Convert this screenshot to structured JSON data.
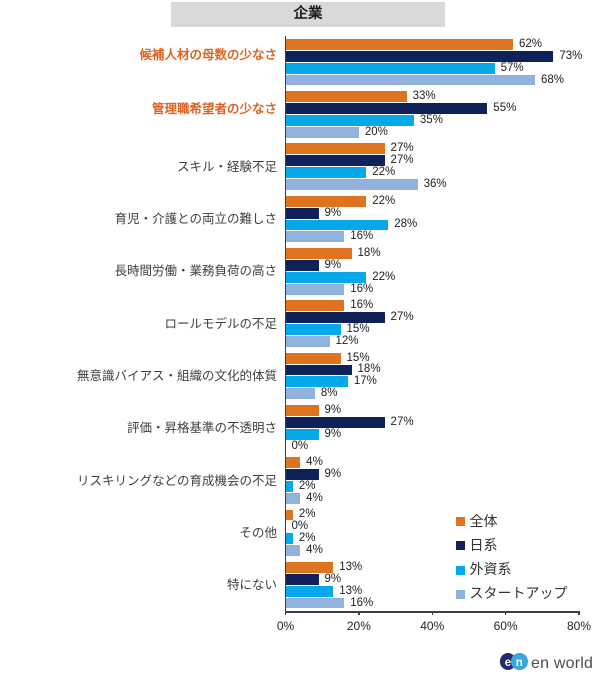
{
  "title": "企業",
  "chart_data": {
    "type": "bar",
    "orientation": "horizontal",
    "title": "企業",
    "categories": [
      "候補人材の母数の少なさ",
      "管理職希望者の少なさ",
      "スキル・経験不足",
      "育児・介護との両立の難しさ",
      "長時間労働・業務負荷の高さ",
      "ロールモデルの不足",
      "無意識バイアス・組織の文化的体質",
      "評価・昇格基準の不透明さ",
      "リスキリングなどの育成機会の不足",
      "その他",
      "特にない"
    ],
    "emphasized_categories": [
      0,
      1
    ],
    "series": [
      {
        "name": "全体",
        "color": "#df7420",
        "values": [
          62,
          33,
          27,
          22,
          18,
          16,
          15,
          9,
          4,
          2,
          13
        ]
      },
      {
        "name": "日系",
        "color": "#0e2158",
        "values": [
          73,
          55,
          27,
          9,
          9,
          27,
          18,
          27,
          9,
          0,
          9
        ]
      },
      {
        "name": "外資系",
        "color": "#05a8e9",
        "values": [
          57,
          35,
          22,
          28,
          22,
          15,
          17,
          9,
          2,
          2,
          13
        ]
      },
      {
        "name": "スタートアップ",
        "color": "#90b2dd",
        "values": [
          68,
          20,
          36,
          16,
          16,
          12,
          8,
          0,
          4,
          4,
          16
        ]
      }
    ],
    "x_ticks": [
      "0%",
      "20%",
      "40%",
      "60%",
      "80%"
    ],
    "xlim": [
      0,
      80
    ],
    "value_suffix": "%",
    "grid": false,
    "legend_position": "right-bottom"
  },
  "styles": {
    "band_bg": "#d9d9d9",
    "emphasized_label_color": "#de6425",
    "label_color": "#3f3f3f"
  },
  "brand": {
    "letter_e": "e",
    "letter_n": "n",
    "logo_text": "en world",
    "circle_e_color": "#252c6e",
    "circle_n_color": "#3aa7dc"
  }
}
